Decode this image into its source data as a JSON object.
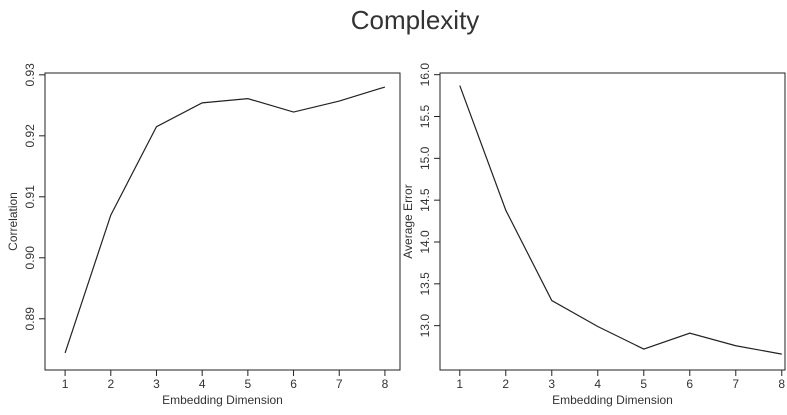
{
  "title": "Complexity",
  "chart_data": [
    {
      "type": "line",
      "xlabel": "Embedding Dimension",
      "ylabel": "Correlation",
      "x": [
        1,
        2,
        3,
        4,
        5,
        6,
        7,
        8
      ],
      "values": [
        0.8844,
        0.907,
        0.9215,
        0.9254,
        0.9261,
        0.9239,
        0.9257,
        0.928
      ],
      "color": "#222222",
      "xlim": [
        0.56,
        8.33
      ],
      "xticks": [
        1,
        2,
        3,
        4,
        5,
        6,
        7,
        8
      ],
      "ylim": [
        0.8816,
        0.9303
      ],
      "yticks": [
        0.89,
        {
          "value": 0.9,
          "label": "0.90"
        },
        0.91,
        0.92,
        0.93
      ]
    },
    {
      "type": "line",
      "xlabel": "Embedding Dimension",
      "ylabel": "Average Error",
      "x": [
        1,
        2,
        3,
        4,
        5,
        6,
        7,
        8
      ],
      "values": [
        15.87,
        14.38,
        13.3,
        12.99,
        12.72,
        12.91,
        12.76,
        12.66
      ],
      "color": "#222222",
      "xlim": [
        0.57,
        8.07
      ],
      "xticks": [
        1,
        2,
        3,
        4,
        5,
        6,
        7,
        8
      ],
      "ylim": [
        12.47,
        16.02
      ],
      "yticks": [
        {
          "value": 13,
          "label": "13.0"
        },
        13.5,
        {
          "value": 14,
          "label": "14.0"
        },
        14.5,
        {
          "value": 15,
          "label": "15.0"
        },
        15.5,
        {
          "value": 16,
          "label": "16.0"
        }
      ]
    }
  ]
}
